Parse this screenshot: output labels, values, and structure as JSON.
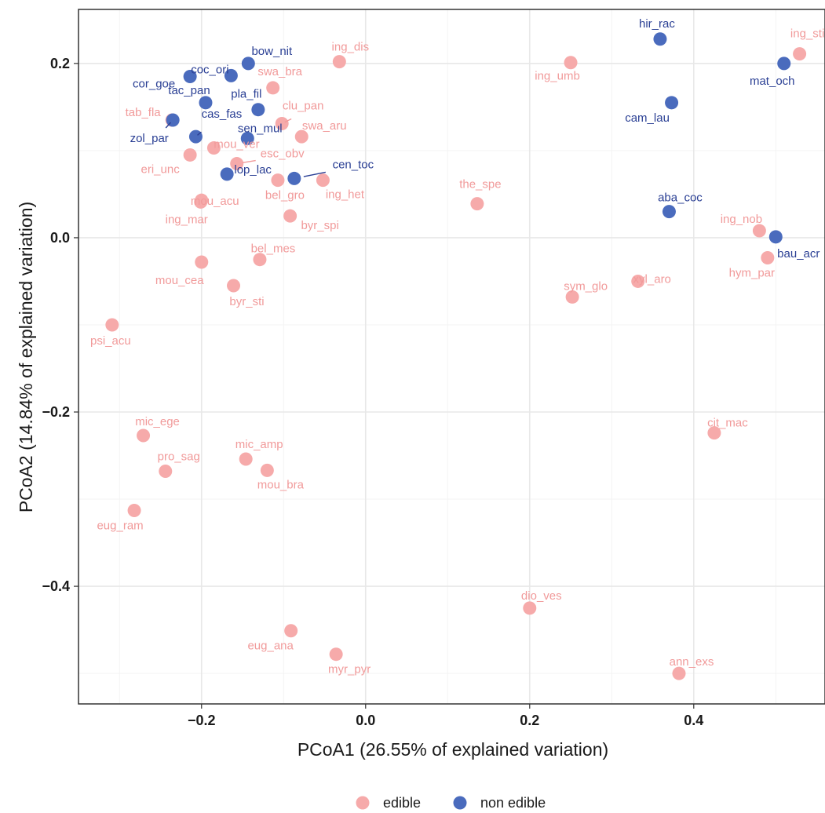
{
  "chart_data": {
    "type": "scatter",
    "xlabel": "PCoA1 (26.55% of explained variation)",
    "ylabel": "PCoA2 (14.84% of explained variation)",
    "xlim": [
      -0.35,
      0.56
    ],
    "ylim": [
      -0.535,
      0.262
    ],
    "xticks": [
      -0.2,
      0.0,
      0.2,
      0.4
    ],
    "xtick_labels": [
      "−0.2",
      "0.0",
      "0.2",
      "0.4"
    ],
    "yticks": [
      0.2,
      0.0,
      -0.2,
      -0.4
    ],
    "ytick_labels": [
      "0.2",
      "0.0",
      "−0.2",
      "−0.4"
    ],
    "grid": true,
    "legend_position": "bottom",
    "series": [
      {
        "name": "edible",
        "color": "#f6aaaa",
        "label_color": "#f19a9a",
        "points": [
          {
            "label": "ing_dis",
            "x": -0.032,
            "y": 0.202
          },
          {
            "label": "ing_sti",
            "x": 0.529,
            "y": 0.211
          },
          {
            "label": "ing_umb",
            "x": 0.25,
            "y": 0.201
          },
          {
            "label": "swa_bra",
            "x": -0.113,
            "y": 0.172
          },
          {
            "label": "clu_pan",
            "x": -0.102,
            "y": 0.131
          },
          {
            "label": "tab_fla",
            "x": -0.236,
            "y": 0.135
          },
          {
            "label": "swa_aru",
            "x": -0.078,
            "y": 0.116
          },
          {
            "label": "mou_ver",
            "x": -0.185,
            "y": 0.103
          },
          {
            "label": "esc_obv",
            "x": -0.157,
            "y": 0.085
          },
          {
            "label": "eri_unc",
            "x": -0.214,
            "y": 0.095
          },
          {
            "label": "bel_gro",
            "x": -0.107,
            "y": 0.066
          },
          {
            "label": "ing_het",
            "x": -0.052,
            "y": 0.066
          },
          {
            "label": "mou_acu",
            "x": -0.2,
            "y": 0.043
          },
          {
            "label": "ing_mar",
            "x": -0.201,
            "y": 0.041
          },
          {
            "label": "byr_spi",
            "x": -0.092,
            "y": 0.025
          },
          {
            "label": "the_spe",
            "x": 0.136,
            "y": 0.039
          },
          {
            "label": "ing_nob",
            "x": 0.48,
            "y": 0.008
          },
          {
            "label": "hym_par",
            "x": 0.49,
            "y": -0.023
          },
          {
            "label": "bel_mes",
            "x": -0.129,
            "y": -0.025
          },
          {
            "label": "mou_cea",
            "x": -0.2,
            "y": -0.028
          },
          {
            "label": "byr_sti",
            "x": -0.161,
            "y": -0.055
          },
          {
            "label": "xyl_aro",
            "x": 0.332,
            "y": -0.05
          },
          {
            "label": "sym_glo",
            "x": 0.252,
            "y": -0.068
          },
          {
            "label": "psi_acu",
            "x": -0.309,
            "y": -0.1
          },
          {
            "label": "mic_ege",
            "x": -0.271,
            "y": -0.227
          },
          {
            "label": "cit_mac",
            "x": 0.425,
            "y": -0.224
          },
          {
            "label": "pro_sag",
            "x": -0.244,
            "y": -0.268
          },
          {
            "label": "mic_amp",
            "x": -0.146,
            "y": -0.254
          },
          {
            "label": "mou_bra",
            "x": -0.12,
            "y": -0.267
          },
          {
            "label": "eug_ram",
            "x": -0.282,
            "y": -0.313
          },
          {
            "label": "dio_ves",
            "x": 0.2,
            "y": -0.425
          },
          {
            "label": "eug_ana",
            "x": -0.091,
            "y": -0.451
          },
          {
            "label": "myr_pyr",
            "x": -0.036,
            "y": -0.478
          },
          {
            "label": "ann_exs",
            "x": 0.382,
            "y": -0.5
          }
        ]
      },
      {
        "name": "non edible",
        "color": "#4a6bbd",
        "label_color": "#2a3f94",
        "points": [
          {
            "label": "bow_nit",
            "x": -0.143,
            "y": 0.2
          },
          {
            "label": "coc_ori",
            "x": -0.164,
            "y": 0.186
          },
          {
            "label": "cor_goe",
            "x": -0.214,
            "y": 0.185
          },
          {
            "label": "tac_pan",
            "x": -0.195,
            "y": 0.155
          },
          {
            "label": "pla_fil",
            "x": -0.131,
            "y": 0.147
          },
          {
            "label": "zol_par",
            "x": -0.235,
            "y": 0.135
          },
          {
            "label": "cas_fas",
            "x": -0.207,
            "y": 0.116
          },
          {
            "label": "sen_mul",
            "x": -0.144,
            "y": 0.114
          },
          {
            "label": "lop_lac",
            "x": -0.169,
            "y": 0.073
          },
          {
            "label": "cen_toc",
            "x": -0.087,
            "y": 0.068
          },
          {
            "label": "hir_rac",
            "x": 0.359,
            "y": 0.228
          },
          {
            "label": "mat_och",
            "x": 0.51,
            "y": 0.2
          },
          {
            "label": "cam_lau",
            "x": 0.373,
            "y": 0.155
          },
          {
            "label": "aba_coc",
            "x": 0.37,
            "y": 0.03
          },
          {
            "label": "bau_acr",
            "x": 0.5,
            "y": 0.001
          }
        ]
      }
    ]
  }
}
